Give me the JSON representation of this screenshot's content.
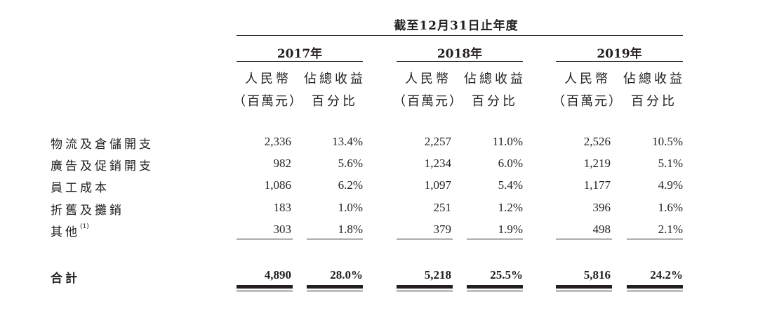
{
  "title": "截至12月31日止年度",
  "years": [
    {
      "label": "2017年",
      "col_amount": "人民幣",
      "col_amount_unit": "（百萬元）",
      "col_pct": "佔總收益",
      "col_pct_unit": "百分比"
    },
    {
      "label": "2018年",
      "col_amount": "人民幣",
      "col_amount_unit": "（百萬元）",
      "col_pct": "佔總收益",
      "col_pct_unit": "百分比"
    },
    {
      "label": "2019年",
      "col_amount": "人民幣",
      "col_amount_unit": "（百萬元）",
      "col_pct": "佔總收益",
      "col_pct_unit": "百分比"
    }
  ],
  "rows": [
    {
      "label": "物流及倉儲開支",
      "note": "",
      "values": [
        "2,336",
        "13.4%",
        "2,257",
        "11.0%",
        "2,526",
        "10.5%"
      ]
    },
    {
      "label": "廣告及促銷開支",
      "note": "",
      "values": [
        "982",
        "5.6%",
        "1,234",
        "6.0%",
        "1,219",
        "5.1%"
      ]
    },
    {
      "label": "員工成本",
      "note": "",
      "values": [
        "1,086",
        "6.2%",
        "1,097",
        "5.4%",
        "1,177",
        "4.9%"
      ]
    },
    {
      "label": "折舊及攤銷",
      "note": "",
      "values": [
        "183",
        "1.0%",
        "251",
        "1.2%",
        "396",
        "1.6%"
      ]
    },
    {
      "label": "其他",
      "note": "(1)",
      "values": [
        "303",
        "1.8%",
        "379",
        "1.9%",
        "498",
        "2.1%"
      ]
    }
  ],
  "total": {
    "label": "合計",
    "values": [
      "4,890",
      "28.0%",
      "5,218",
      "25.5%",
      "5,816",
      "24.2%"
    ]
  }
}
